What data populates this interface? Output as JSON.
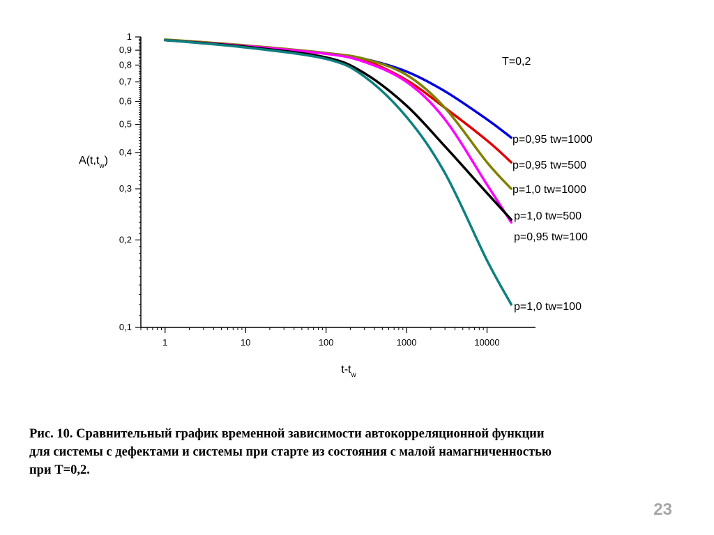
{
  "chart_data": {
    "type": "line",
    "x_scale": "log",
    "y_scale": "log",
    "xlim": [
      0.5,
      40000
    ],
    "ylim": [
      0.1,
      1
    ],
    "grid": false,
    "xlabel": {
      "main": "t-t",
      "sub": "w"
    },
    "ylabel": {
      "main": "A(t,t",
      "sub": "w",
      "close": ")"
    },
    "x_ticks": [
      "1",
      "10",
      "100",
      "1000",
      "10000"
    ],
    "x_tick_values": [
      1,
      10,
      100,
      1000,
      10000
    ],
    "y_ticks": [
      "1",
      "0,9",
      "0,8",
      "0,7",
      "0,6",
      "0,5",
      "0,4",
      "0,3",
      "0,2",
      "0,1"
    ],
    "y_tick_values": [
      1,
      0.9,
      0.8,
      0.7,
      0.6,
      0.5,
      0.4,
      0.3,
      0.2,
      0.1
    ],
    "annotation": "T=0,2",
    "series": [
      {
        "name": "p=0,95 tw=1000",
        "color": "#0000e0",
        "x": [
          1,
          10,
          100,
          300,
          1000,
          3000,
          10000,
          20000
        ],
        "y": [
          0.975,
          0.93,
          0.88,
          0.84,
          0.76,
          0.65,
          0.52,
          0.45
        ]
      },
      {
        "name": "p=0,95 tw=500",
        "color": "#e00000",
        "x": [
          1,
          10,
          100,
          300,
          1000,
          3000,
          10000,
          20000
        ],
        "y": [
          0.975,
          0.93,
          0.875,
          0.83,
          0.71,
          0.57,
          0.44,
          0.37
        ]
      },
      {
        "name": "p=1,0 tw=1000",
        "color": "#808000",
        "x": [
          1,
          10,
          100,
          300,
          1000,
          3000,
          10000,
          20000
        ],
        "y": [
          0.98,
          0.935,
          0.88,
          0.84,
          0.74,
          0.57,
          0.37,
          0.3
        ]
      },
      {
        "name": "p=1,0 tw=500",
        "color": "#ff00ff",
        "x": [
          1,
          10,
          100,
          300,
          1000,
          3000,
          10000,
          20000
        ],
        "y": [
          0.975,
          0.93,
          0.875,
          0.82,
          0.7,
          0.52,
          0.31,
          0.23
        ]
      },
      {
        "name": "p=0,95 tw=100",
        "color": "#000000",
        "x": [
          1,
          10,
          100,
          300,
          1000,
          3000,
          10000,
          20000
        ],
        "y": [
          0.975,
          0.925,
          0.85,
          0.75,
          0.58,
          0.42,
          0.29,
          0.235
        ]
      },
      {
        "name": "p=1,0 tw=100",
        "color": "#0e8080",
        "x": [
          1,
          10,
          100,
          300,
          1000,
          3000,
          10000,
          20000
        ],
        "y": [
          0.975,
          0.92,
          0.84,
          0.73,
          0.53,
          0.34,
          0.17,
          0.12
        ]
      }
    ]
  },
  "caption": {
    "line1": "Рис. 10. Сравнительный график временной зависимости автокорреляционной функции",
    "line2": "для системы с дефектами и системы при старте из состояния с малой намагниченностью",
    "line3": "при Т=0,2."
  },
  "page_number": "23"
}
